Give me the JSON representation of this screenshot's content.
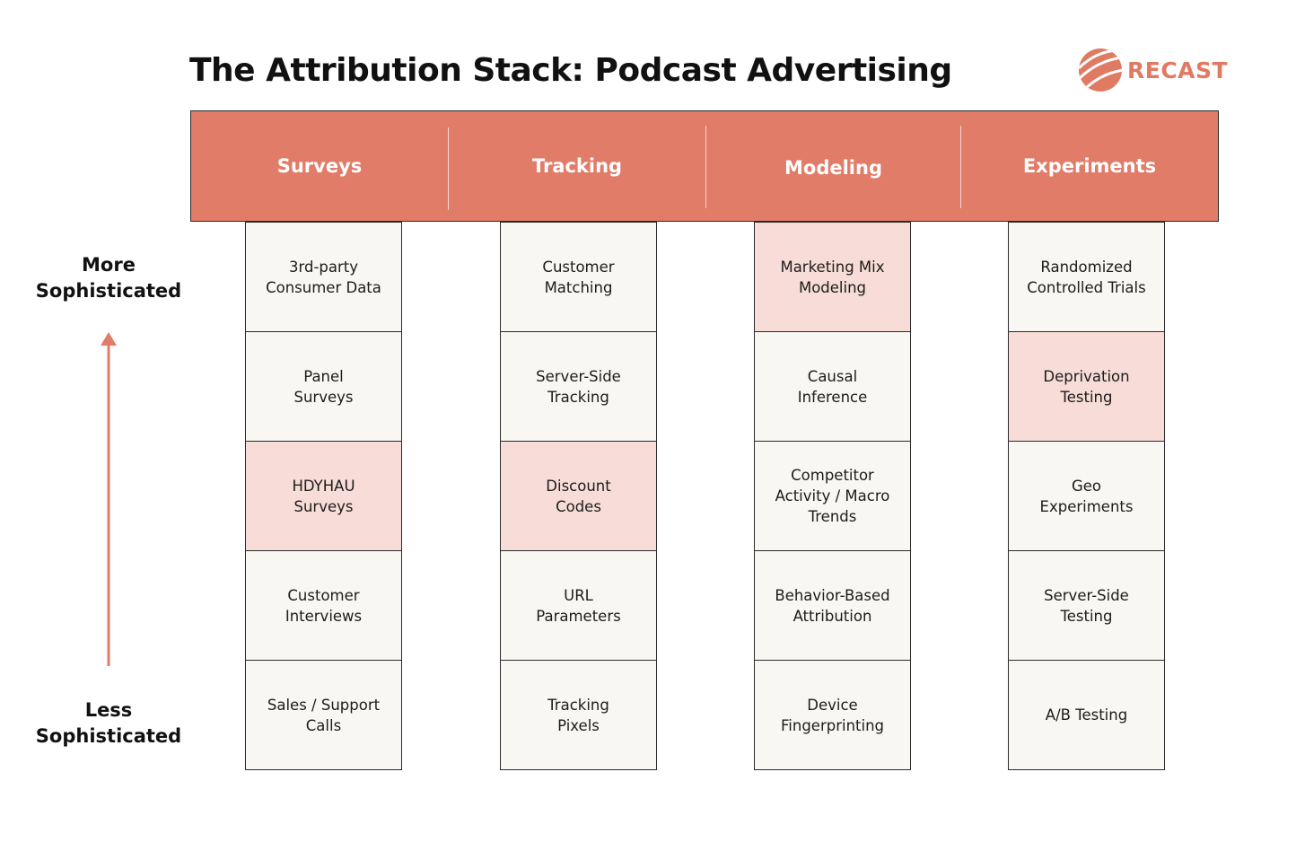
{
  "title": "The Attribution Stack: Podcast Advertising",
  "logo": {
    "text": "RECAST",
    "icon": "recast-globe-icon",
    "color": "#e07a63"
  },
  "colors": {
    "header": "#e07c68",
    "highlight": "#f7dcd7",
    "cell": "#f8f7f3",
    "arrow": "#e07c68"
  },
  "axis": {
    "top_label": "More\nSophisticated",
    "bottom_label": "Less\nSophisticated",
    "arrow": "arrow-up-icon"
  },
  "columns": [
    {
      "header": "Surveys",
      "items": [
        {
          "label": "3rd-party\nConsumer Data",
          "highlight": false
        },
        {
          "label": "Panel\nSurveys",
          "highlight": false
        },
        {
          "label": "HDYHAU\nSurveys",
          "highlight": true
        },
        {
          "label": "Customer\nInterviews",
          "highlight": false
        },
        {
          "label": "Sales / Support\nCalls",
          "highlight": false
        }
      ]
    },
    {
      "header": "Tracking",
      "items": [
        {
          "label": "Customer\nMatching",
          "highlight": false
        },
        {
          "label": "Server-Side\nTracking",
          "highlight": false
        },
        {
          "label": "Discount\nCodes",
          "highlight": true
        },
        {
          "label": "URL\nParameters",
          "highlight": false
        },
        {
          "label": "Tracking\nPixels",
          "highlight": false
        }
      ]
    },
    {
      "header": "Modeling",
      "items": [
        {
          "label": "Marketing Mix\nModeling",
          "highlight": true
        },
        {
          "label": "Causal\nInference",
          "highlight": false
        },
        {
          "label": "Competitor\nActivity / Macro\nTrends",
          "highlight": false
        },
        {
          "label": "Behavior-Based\nAttribution",
          "highlight": false
        },
        {
          "label": "Device\nFingerprinting",
          "highlight": false
        }
      ]
    },
    {
      "header": "Experiments",
      "items": [
        {
          "label": "Randomized\nControlled Trials",
          "highlight": false
        },
        {
          "label": "Deprivation\nTesting",
          "highlight": true
        },
        {
          "label": "Geo\nExperiments",
          "highlight": false
        },
        {
          "label": "Server-Side\nTesting",
          "highlight": false
        },
        {
          "label": "A/B Testing",
          "highlight": false
        }
      ]
    }
  ]
}
